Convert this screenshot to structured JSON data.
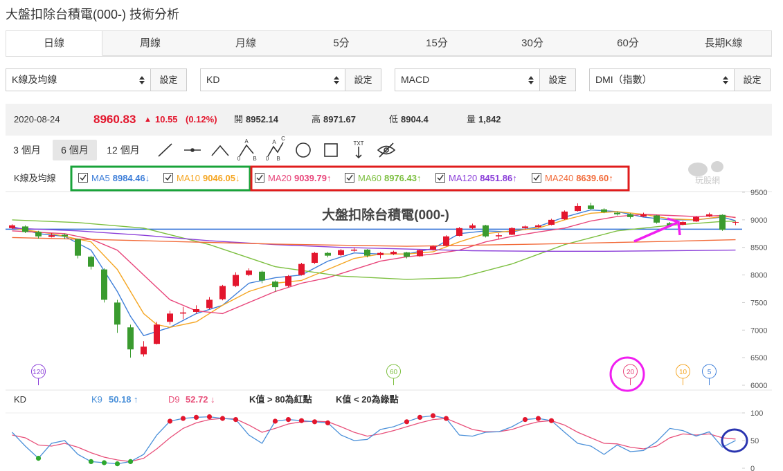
{
  "header": {
    "title": "大盤扣除台積電(000-) 技術分析"
  },
  "tabs": {
    "items": [
      "日線",
      "周線",
      "月線",
      "5分",
      "15分",
      "30分",
      "60分",
      "長期K線"
    ],
    "active": 0
  },
  "selects": {
    "items": [
      "K線及均線",
      "KD",
      "MACD",
      "DMI（指數）"
    ],
    "button": "設定"
  },
  "quote": {
    "date": "2020-08-24",
    "price": 8960.83,
    "change": 10.55,
    "change_pct": "(0.12%)",
    "fields": [
      {
        "label": "開",
        "value": 8952.14
      },
      {
        "label": "高",
        "value": 8971.67
      },
      {
        "label": "低",
        "value": 8904.4
      },
      {
        "label": "量",
        "value": "1,842"
      }
    ]
  },
  "ranges": {
    "items": [
      "3 個月",
      "6 個月",
      "12 個月"
    ],
    "active": 1
  },
  "tools": {
    "abc_icon": [
      "A",
      "0",
      "B"
    ],
    "abcd_icon": [
      "A",
      "C",
      "0",
      "B"
    ],
    "text_icon": "TXT"
  },
  "watermark": "玩股網",
  "chart_data": [
    {
      "type": "candlestick",
      "indicator": "K線及均線",
      "title": "大盤扣除台積電(000-)",
      "up_color": "#e3162d",
      "down_color": "#3a9b2f",
      "ylim": [
        6000,
        9500
      ],
      "yticks": [
        6000,
        6500,
        7000,
        7500,
        8000,
        8500,
        9000,
        9500
      ],
      "ohlc": [
        [
          8850,
          8920,
          8830,
          8900
        ],
        [
          8880,
          8900,
          8760,
          8780
        ],
        [
          8780,
          8800,
          8660,
          8700
        ],
        [
          8690,
          8760,
          8680,
          8720
        ],
        [
          8730,
          8750,
          8650,
          8700
        ],
        [
          8650,
          8660,
          8300,
          8350
        ],
        [
          8330,
          8350,
          8100,
          8150
        ],
        [
          8100,
          8120,
          7500,
          7550
        ],
        [
          7500,
          7550,
          6950,
          7100
        ],
        [
          7050,
          7100,
          6500,
          6650
        ],
        [
          6560,
          6800,
          6520,
          6700
        ],
        [
          6750,
          7150,
          6740,
          7100
        ],
        [
          7150,
          7350,
          7100,
          7300
        ],
        [
          7300,
          7420,
          7200,
          7320
        ],
        [
          7330,
          7450,
          7300,
          7380
        ],
        [
          7400,
          7600,
          7380,
          7550
        ],
        [
          7560,
          7820,
          7540,
          7800
        ],
        [
          7800,
          8050,
          7780,
          8000
        ],
        [
          8000,
          8120,
          7980,
          8080
        ],
        [
          8060,
          8080,
          7850,
          7900
        ],
        [
          7880,
          7900,
          7700,
          7780
        ],
        [
          7800,
          8000,
          7780,
          7980
        ],
        [
          8000,
          8220,
          7990,
          8200
        ],
        [
          8220,
          8420,
          8200,
          8400
        ],
        [
          8400,
          8420,
          8320,
          8350
        ],
        [
          8360,
          8470,
          8340,
          8450
        ],
        [
          8440,
          8500,
          8420,
          8460
        ],
        [
          8460,
          8470,
          8320,
          8350
        ],
        [
          8360,
          8420,
          8300,
          8400
        ],
        [
          8380,
          8440,
          8360,
          8420
        ],
        [
          8410,
          8420,
          8300,
          8330
        ],
        [
          8340,
          8460,
          8330,
          8450
        ],
        [
          8460,
          8540,
          8440,
          8520
        ],
        [
          8530,
          8720,
          8520,
          8700
        ],
        [
          8710,
          8870,
          8700,
          8850
        ],
        [
          8850,
          8930,
          8830,
          8900
        ],
        [
          8900,
          8910,
          8680,
          8700
        ],
        [
          8700,
          8760,
          8650,
          8720
        ],
        [
          8730,
          8870,
          8720,
          8850
        ],
        [
          8850,
          8900,
          8820,
          8880
        ],
        [
          8870,
          8920,
          8860,
          8900
        ],
        [
          8910,
          9020,
          8900,
          9000
        ],
        [
          9010,
          9170,
          9000,
          9150
        ],
        [
          9160,
          9300,
          9150,
          9250
        ],
        [
          9260,
          9310,
          9180,
          9200
        ],
        [
          9190,
          9210,
          9120,
          9140
        ],
        [
          9130,
          9150,
          9080,
          9100
        ],
        [
          9100,
          9120,
          9020,
          9050
        ],
        [
          9060,
          9130,
          9050,
          9100
        ],
        [
          9080,
          9090,
          8930,
          8950
        ],
        [
          8940,
          8960,
          8880,
          8900
        ],
        [
          8910,
          8980,
          8900,
          8960
        ],
        [
          8970,
          9070,
          8960,
          9050
        ],
        [
          9060,
          9130,
          9050,
          9100
        ],
        [
          9090,
          9100,
          8800,
          8820
        ],
        [
          8952.14,
          8971.67,
          8904.4,
          8960.83
        ]
      ],
      "reference_line": {
        "value": 8830,
        "color": "#2f6fd6"
      },
      "ma": [
        {
          "name": "MA5",
          "color": "#3f7fd9",
          "legend_value": 8984.46,
          "trend": "↓",
          "x": [
            0,
            2,
            4,
            6,
            8,
            9,
            10,
            12,
            14,
            16,
            18,
            20,
            22,
            24,
            26,
            28,
            30,
            32,
            34,
            36,
            38,
            40,
            42,
            44,
            46,
            48,
            50,
            52,
            54,
            55
          ],
          "values": [
            8880,
            8750,
            8700,
            8450,
            7700,
            7250,
            6900,
            7050,
            7300,
            7450,
            7850,
            7950,
            8000,
            8250,
            8400,
            8380,
            8380,
            8480,
            8750,
            8800,
            8780,
            8880,
            9050,
            9180,
            9150,
            9050,
            9000,
            9000,
            9050,
            8984.46
          ]
        },
        {
          "name": "MA10",
          "color": "#f5a623",
          "legend_value": 9046.05,
          "trend": "↓",
          "x": [
            0,
            3,
            6,
            8,
            10,
            11,
            12,
            14,
            16,
            18,
            20,
            22,
            24,
            26,
            28,
            30,
            32,
            34,
            36,
            38,
            40,
            42,
            44,
            46,
            48,
            50,
            52,
            54,
            55
          ],
          "values": [
            8850,
            8750,
            8600,
            8100,
            7300,
            7100,
            7050,
            7150,
            7450,
            7700,
            7850,
            7900,
            8100,
            8300,
            8380,
            8380,
            8420,
            8600,
            8750,
            8800,
            8850,
            9000,
            9120,
            9150,
            9100,
            9020,
            9000,
            9060,
            9046.05
          ]
        },
        {
          "name": "MA20",
          "color": "#e8457a",
          "legend_value": 9039.79,
          "trend": "↑",
          "x": [
            0,
            4,
            6,
            8,
            10,
            12,
            14,
            16,
            18,
            20,
            22,
            24,
            26,
            28,
            30,
            32,
            34,
            36,
            38,
            40,
            42,
            44,
            46,
            48,
            50,
            52,
            54,
            55
          ],
          "values": [
            8800,
            8750,
            8650,
            8450,
            8000,
            7550,
            7350,
            7300,
            7500,
            7700,
            7850,
            7950,
            8100,
            8250,
            8330,
            8380,
            8450,
            8600,
            8700,
            8780,
            8850,
            8980,
            9060,
            9100,
            9080,
            9060,
            9080,
            9039.79
          ]
        },
        {
          "name": "MA60",
          "color": "#7cbf3f",
          "legend_value": 8976.43,
          "trend": "↑",
          "x": [
            0,
            5,
            10,
            15,
            20,
            25,
            30,
            34,
            38,
            42,
            46,
            50,
            54,
            55
          ],
          "values": [
            9000,
            8950,
            8850,
            8550,
            8150,
            7980,
            7920,
            7950,
            8200,
            8550,
            8800,
            8900,
            8970,
            8976.43
          ]
        },
        {
          "name": "MA120",
          "color": "#8b3fd9",
          "legend_value": 8451.86,
          "trend": "↑",
          "x": [
            0,
            5,
            10,
            15,
            20,
            25,
            30,
            35,
            40,
            45,
            50,
            55
          ],
          "values": [
            8850,
            8800,
            8720,
            8620,
            8550,
            8500,
            8470,
            8440,
            8430,
            8430,
            8440,
            8451.86
          ]
        },
        {
          "name": "MA240",
          "color": "#f26b3a",
          "legend_value": {
            "value": 8639.6,
            "label": "8639.60"
          },
          "trend": "↑",
          "x": [
            0,
            10,
            20,
            30,
            40,
            50,
            55
          ],
          "values": [
            8680,
            8620,
            8560,
            8520,
            8560,
            8610,
            8639.6
          ]
        }
      ],
      "period_markers": [
        {
          "label": 120,
          "x": 2,
          "color": "#8b3fd9"
        },
        {
          "label": 60,
          "x": 29,
          "color": "#7cbf3f"
        },
        {
          "label": 20,
          "x": 47,
          "color": "#e8457a"
        },
        {
          "label": 10,
          "x": 51,
          "color": "#f5a623"
        },
        {
          "label": 5,
          "x": 53,
          "color": "#3f7fd9"
        }
      ]
    },
    {
      "type": "line",
      "indicator": "KD",
      "ylim": [
        0,
        100
      ],
      "yticks": [
        0,
        50,
        100
      ],
      "notes": [
        "K值 > 80為紅點",
        "K值 < 20為綠點"
      ],
      "red_dot_min": 80,
      "green_dot_max": 20,
      "red_dot_color": "#e3162d",
      "green_dot_color": "#2ea82e",
      "series": [
        {
          "name": "K9",
          "color": "#4a90d9",
          "trend": "↑",
          "values": [
            65,
            40,
            18,
            45,
            50,
            25,
            12,
            10,
            8,
            12,
            25,
            60,
            85,
            90,
            92,
            93,
            90,
            88,
            60,
            45,
            85,
            88,
            86,
            84,
            82,
            60,
            50,
            52,
            70,
            75,
            84,
            92,
            95,
            90,
            60,
            58,
            65,
            66,
            75,
            88,
            90,
            86,
            65,
            45,
            40,
            25,
            42,
            30,
            32,
            48,
            72,
            68,
            58,
            66,
            38,
            50.18
          ]
        },
        {
          "name": "D9",
          "color": "#e8507a",
          "trend": "↓",
          "values": [
            60,
            55,
            42,
            40,
            45,
            38,
            28,
            20,
            15,
            12,
            18,
            35,
            55,
            72,
            82,
            88,
            90,
            89,
            78,
            65,
            72,
            80,
            84,
            85,
            84,
            75,
            65,
            58,
            62,
            68,
            75,
            82,
            88,
            90,
            80,
            70,
            66,
            66,
            70,
            78,
            84,
            86,
            78,
            65,
            55,
            45,
            44,
            38,
            35,
            40,
            55,
            62,
            60,
            62,
            55,
            52.72
          ]
        }
      ]
    }
  ]
}
